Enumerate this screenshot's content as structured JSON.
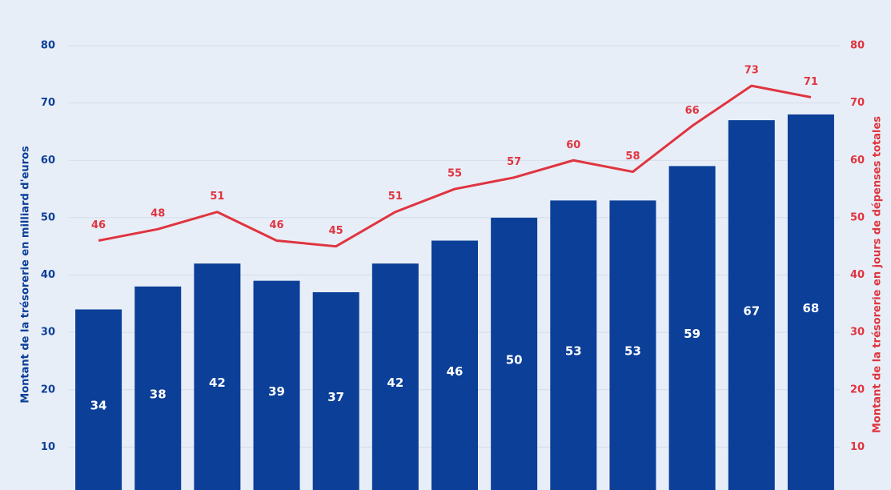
{
  "chart_data": {
    "type": "bar_line",
    "ylabel": "Montant de la trésorerie en milliard d'euros",
    "y2label": "Montant de la trésorerie en jours de dépenses totales",
    "categories": [
      null,
      null,
      null,
      null,
      null,
      null,
      null,
      null,
      null,
      null,
      null,
      null,
      null
    ],
    "series": [
      {
        "type": "bar",
        "color": "#0b3f98",
        "values": [
          34,
          38,
          42,
          39,
          37,
          42,
          46,
          50,
          53,
          53,
          59,
          67,
          68
        ]
      },
      {
        "type": "line",
        "axis": "y2",
        "color": "#df3540",
        "values": [
          46,
          48,
          51,
          46,
          45,
          51,
          55,
          57,
          60,
          58,
          66,
          73,
          71
        ]
      }
    ],
    "ylim": [
      0,
      80
    ],
    "yticks": [
      10,
      20,
      30,
      40,
      50,
      60,
      70,
      80
    ],
    "y2lim": [
      0,
      80
    ],
    "y2ticks": [
      10,
      20,
      30,
      40,
      50,
      60,
      70,
      80
    ],
    "grid": true
  }
}
